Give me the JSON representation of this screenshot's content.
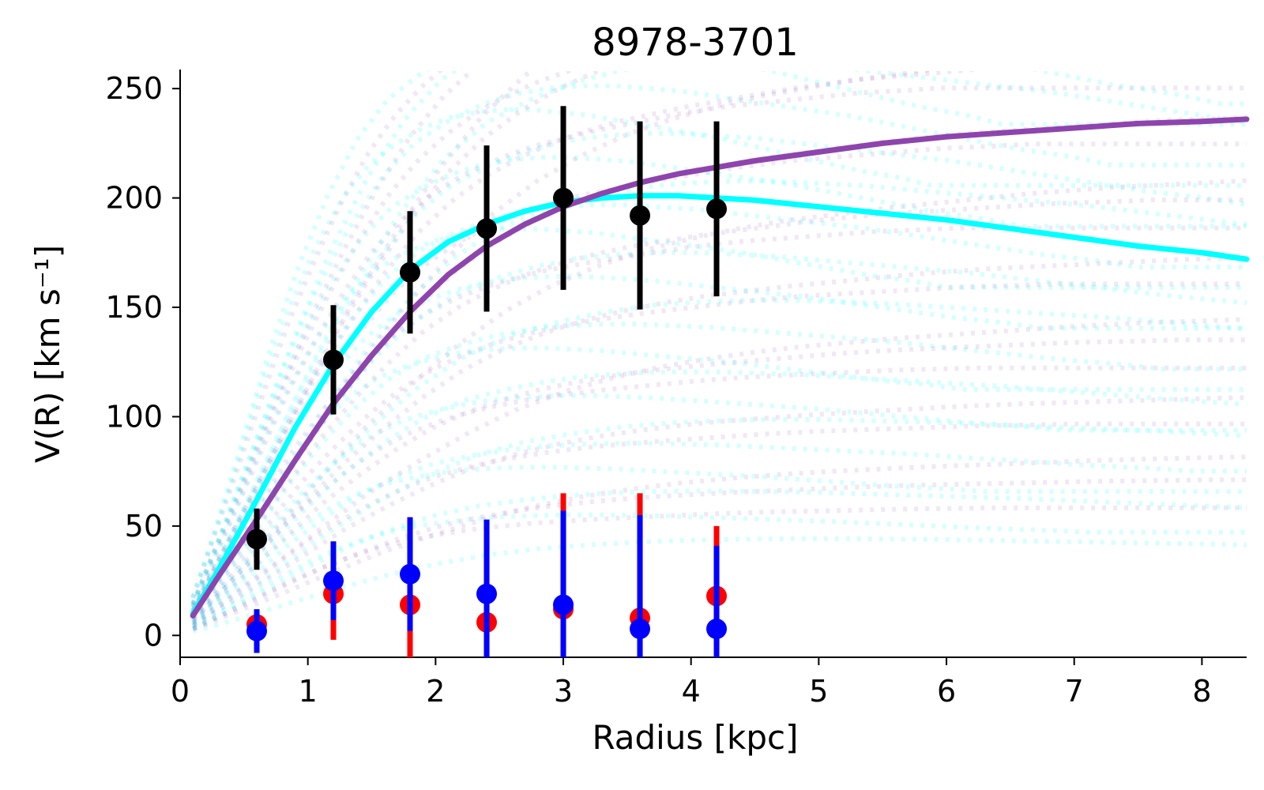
{
  "chart_data": {
    "type": "scatter",
    "title": "8978-3701",
    "xlabel": "Radius [kpc]",
    "ylabel": "V(R) [km s⁻¹]",
    "xlim": [
      0,
      8.35
    ],
    "ylim": [
      -10,
      258
    ],
    "xticks": [
      0,
      1,
      2,
      3,
      4,
      5,
      6,
      7,
      8
    ],
    "yticks": [
      0,
      50,
      100,
      150,
      200,
      250
    ],
    "grid": false,
    "legend": "none",
    "colors": {
      "observed": "#000000",
      "red_series": "#ff0000",
      "blue_series": "#0000ff",
      "model_cyan": "#00ffff",
      "model_purple": "#8e44ad"
    },
    "observed": {
      "x": [
        0.6,
        1.2,
        1.8,
        2.4,
        3.0,
        3.6,
        4.2
      ],
      "y": [
        44,
        126,
        166,
        186,
        200,
        192,
        195
      ],
      "err": [
        14,
        25,
        28,
        38,
        42,
        43,
        40
      ]
    },
    "red_points": {
      "x": [
        0.6,
        1.2,
        1.8,
        2.4,
        3.0,
        3.6,
        4.2
      ],
      "y": [
        5,
        19,
        14,
        6,
        12,
        8,
        18
      ],
      "err_low": [
        5,
        21,
        25,
        16,
        22,
        18,
        23
      ],
      "err_high": [
        5,
        23,
        40,
        46,
        53,
        57,
        32
      ]
    },
    "blue_points": {
      "x": [
        0.6,
        1.2,
        1.8,
        2.4,
        3.0,
        3.6,
        4.2
      ],
      "y": [
        2,
        25,
        28,
        19,
        14,
        3,
        3
      ],
      "err": [
        10,
        18,
        26,
        34,
        43,
        52,
        38
      ]
    },
    "model_curves": [
      {
        "color": "#00ffff",
        "x": [
          0.1,
          0.3,
          0.6,
          0.9,
          1.2,
          1.5,
          1.8,
          2.1,
          2.4,
          2.7,
          3.0,
          3.3,
          3.6,
          3.9,
          4.2,
          4.5,
          5.0,
          5.5,
          6.0,
          6.5,
          7.0,
          7.5,
          8.0,
          8.35
        ],
        "y": [
          10,
          30,
          62,
          95,
          124,
          148,
          167,
          180,
          188,
          194,
          198,
          200,
          201,
          201,
          200,
          199,
          196,
          193,
          190,
          186,
          182,
          178,
          175,
          172
        ]
      },
      {
        "color": "#8e44ad",
        "x": [
          0.1,
          0.3,
          0.6,
          0.9,
          1.2,
          1.5,
          1.8,
          2.1,
          2.4,
          2.7,
          3.0,
          3.3,
          3.6,
          3.9,
          4.2,
          4.5,
          5.0,
          5.5,
          6.0,
          6.5,
          7.0,
          7.5,
          8.0,
          8.35
        ],
        "y": [
          9,
          27,
          53,
          80,
          106,
          128,
          148,
          165,
          178,
          188,
          196,
          202,
          207,
          211,
          214,
          217,
          221,
          225,
          228,
          230,
          232,
          234,
          235,
          236
        ]
      }
    ]
  }
}
